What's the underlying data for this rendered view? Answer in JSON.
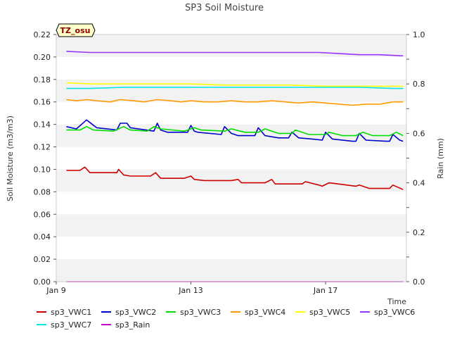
{
  "chart_data": {
    "type": "line",
    "title": "SP3 Soil Moisture",
    "xlabel": "Time",
    "ylabel": "Soil Moisture (m3/m3)",
    "y2label": "Rain (mm)",
    "annotation": "TZ_osu",
    "x_range": [
      0,
      10.4
    ],
    "ylim": [
      0.0,
      0.22
    ],
    "y2lim": [
      0.0,
      1.0
    ],
    "x_ticks": [
      {
        "x": 0,
        "label": "Jan 9"
      },
      {
        "x": 4,
        "label": "Jan 13"
      },
      {
        "x": 8,
        "label": "Jan 17"
      }
    ],
    "y_ticks": [
      {
        "v": 0.0,
        "label": "0.00"
      },
      {
        "v": 0.02,
        "label": "0.02"
      },
      {
        "v": 0.04,
        "label": "0.04"
      },
      {
        "v": 0.06,
        "label": "0.06"
      },
      {
        "v": 0.08,
        "label": "0.08"
      },
      {
        "v": 0.1,
        "label": "0.10"
      },
      {
        "v": 0.12,
        "label": "0.12"
      },
      {
        "v": 0.14,
        "label": "0.14"
      },
      {
        "v": 0.16,
        "label": "0.16"
      },
      {
        "v": 0.18,
        "label": "0.18"
      },
      {
        "v": 0.2,
        "label": "0.20"
      },
      {
        "v": 0.22,
        "label": "0.22"
      }
    ],
    "y2_ticks": [
      {
        "v": 0.0,
        "label": "0.0"
      },
      {
        "v": 0.2,
        "label": "0.2"
      },
      {
        "v": 0.4,
        "label": "0.4"
      },
      {
        "v": 0.6,
        "label": "0.6"
      },
      {
        "v": 0.8,
        "label": "0.8"
      },
      {
        "v": 1.0,
        "label": "1.0"
      }
    ],
    "grid": "horizontal alternating bands",
    "legend_position": "bottom",
    "series": [
      {
        "name": "sp3_VWC1",
        "color": "#cc0000",
        "axis": "left",
        "x": [
          0.3,
          0.7,
          0.85,
          1.0,
          1.8,
          1.85,
          2.0,
          2.2,
          2.8,
          2.95,
          3.1,
          3.8,
          4.0,
          4.1,
          4.4,
          5.2,
          5.4,
          5.5,
          5.7,
          6.2,
          6.4,
          6.5,
          7.0,
          7.3,
          7.4,
          7.8,
          7.9,
          8.1,
          8.9,
          9.0,
          9.3,
          9.9,
          10.0,
          10.3
        ],
        "y": [
          0.099,
          0.099,
          0.102,
          0.097,
          0.097,
          0.1,
          0.095,
          0.094,
          0.094,
          0.097,
          0.092,
          0.092,
          0.094,
          0.091,
          0.09,
          0.09,
          0.091,
          0.088,
          0.088,
          0.088,
          0.091,
          0.087,
          0.087,
          0.087,
          0.089,
          0.086,
          0.085,
          0.088,
          0.085,
          0.086,
          0.083,
          0.083,
          0.086,
          0.082
        ]
      },
      {
        "name": "sp3_VWC2",
        "color": "#0000cc",
        "axis": "left",
        "x": [
          0.3,
          0.6,
          0.9,
          1.2,
          1.8,
          1.9,
          2.1,
          2.2,
          2.9,
          3.0,
          3.1,
          3.3,
          3.9,
          4.0,
          4.1,
          4.2,
          4.9,
          5.0,
          5.2,
          5.4,
          5.9,
          6.0,
          6.2,
          6.6,
          6.9,
          7.0,
          7.2,
          7.6,
          7.9,
          8.0,
          8.2,
          8.8,
          8.9,
          9.0,
          9.2,
          9.8,
          9.9,
          10.0,
          10.2,
          10.3
        ],
        "y": [
          0.138,
          0.136,
          0.144,
          0.137,
          0.135,
          0.141,
          0.141,
          0.137,
          0.134,
          0.141,
          0.135,
          0.133,
          0.133,
          0.139,
          0.134,
          0.133,
          0.131,
          0.138,
          0.132,
          0.13,
          0.13,
          0.137,
          0.13,
          0.128,
          0.128,
          0.133,
          0.128,
          0.127,
          0.126,
          0.133,
          0.127,
          0.125,
          0.125,
          0.132,
          0.126,
          0.125,
          0.125,
          0.131,
          0.126,
          0.125
        ]
      },
      {
        "name": "sp3_VWC3",
        "color": "#00dd00",
        "axis": "left",
        "x": [
          0.3,
          0.7,
          0.9,
          1.1,
          1.7,
          2.0,
          2.2,
          2.7,
          2.9,
          3.1,
          3.8,
          4.1,
          4.3,
          5.0,
          5.2,
          5.6,
          6.0,
          6.2,
          6.6,
          7.0,
          7.1,
          7.5,
          8.0,
          8.1,
          8.5,
          8.9,
          9.1,
          9.4,
          9.9,
          10.1,
          10.3
        ],
        "y": [
          0.135,
          0.135,
          0.138,
          0.135,
          0.134,
          0.138,
          0.135,
          0.134,
          0.138,
          0.136,
          0.134,
          0.137,
          0.135,
          0.134,
          0.136,
          0.133,
          0.133,
          0.136,
          0.132,
          0.132,
          0.135,
          0.131,
          0.131,
          0.133,
          0.13,
          0.13,
          0.133,
          0.13,
          0.13,
          0.133,
          0.13
        ]
      },
      {
        "name": "sp3_VWC4",
        "color": "#ff9900",
        "axis": "left",
        "x": [
          0.3,
          0.6,
          0.9,
          1.2,
          1.6,
          1.9,
          2.3,
          2.6,
          3.0,
          3.4,
          3.7,
          4.0,
          4.4,
          4.8,
          5.2,
          5.6,
          6.0,
          6.4,
          6.8,
          7.2,
          7.6,
          8.0,
          8.4,
          8.8,
          9.2,
          9.6,
          10.0,
          10.3
        ],
        "y": [
          0.162,
          0.161,
          0.162,
          0.161,
          0.16,
          0.162,
          0.161,
          0.16,
          0.162,
          0.161,
          0.16,
          0.161,
          0.16,
          0.16,
          0.161,
          0.16,
          0.16,
          0.161,
          0.16,
          0.159,
          0.16,
          0.159,
          0.158,
          0.157,
          0.158,
          0.158,
          0.16,
          0.16
        ]
      },
      {
        "name": "sp3_VWC5",
        "color": "#ffff00",
        "axis": "left",
        "x": [
          0.3,
          1.0,
          2.0,
          3.0,
          4.0,
          5.0,
          6.0,
          7.0,
          8.0,
          9.0,
          10.0,
          10.3
        ],
        "y": [
          0.177,
          0.176,
          0.176,
          0.176,
          0.176,
          0.175,
          0.175,
          0.175,
          0.174,
          0.174,
          0.174,
          0.174
        ]
      },
      {
        "name": "sp3_VWC6",
        "color": "#9933ff",
        "axis": "left",
        "x": [
          0.3,
          1.0,
          2.0,
          3.0,
          4.0,
          5.0,
          6.0,
          7.0,
          7.8,
          8.4,
          9.0,
          9.6,
          10.3
        ],
        "y": [
          0.205,
          0.204,
          0.204,
          0.204,
          0.204,
          0.204,
          0.204,
          0.204,
          0.204,
          0.203,
          0.202,
          0.202,
          0.201
        ]
      },
      {
        "name": "sp3_VWC7",
        "color": "#00e5e5",
        "axis": "left",
        "x": [
          0.3,
          1.0,
          2.0,
          3.0,
          4.0,
          5.0,
          6.0,
          7.0,
          8.0,
          9.0,
          10.0,
          10.3
        ],
        "y": [
          0.172,
          0.172,
          0.173,
          0.173,
          0.173,
          0.173,
          0.173,
          0.173,
          0.173,
          0.173,
          0.172,
          0.172
        ]
      },
      {
        "name": "sp3_Rain",
        "color": "#cc00cc",
        "axis": "right",
        "x": [
          0.3,
          10.3
        ],
        "y": [
          0.0,
          0.0
        ]
      }
    ]
  }
}
